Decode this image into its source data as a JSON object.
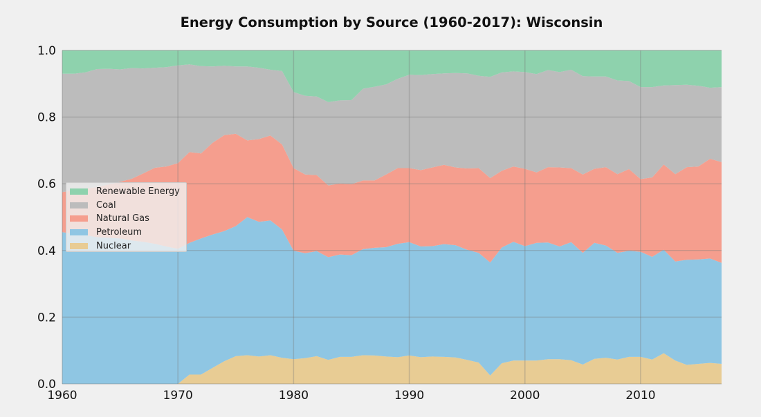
{
  "chart_data": {
    "type": "area",
    "stacked": true,
    "normalized": true,
    "title": "Energy Consumption by Source (1960-2017): Wisconsin",
    "xlabel": "",
    "ylabel": "",
    "xlim": [
      1960,
      2017
    ],
    "ylim": [
      0,
      1
    ],
    "x_ticks": [
      "1960",
      "1970",
      "1980",
      "1990",
      "2000",
      "2010"
    ],
    "y_ticks": [
      "0.0",
      "0.2",
      "0.4",
      "0.6",
      "0.8",
      "1.0"
    ],
    "grid": true,
    "legend_position": "center-left",
    "x": [
      1960,
      1961,
      1962,
      1963,
      1964,
      1965,
      1966,
      1967,
      1968,
      1969,
      1970,
      1971,
      1972,
      1973,
      1974,
      1975,
      1976,
      1977,
      1978,
      1979,
      1980,
      1981,
      1982,
      1983,
      1984,
      1985,
      1986,
      1987,
      1988,
      1989,
      1990,
      1991,
      1992,
      1993,
      1994,
      1995,
      1996,
      1997,
      1998,
      1999,
      2000,
      2001,
      2002,
      2003,
      2004,
      2005,
      2006,
      2007,
      2008,
      2009,
      2010,
      2011,
      2012,
      2013,
      2014,
      2015,
      2016,
      2017
    ],
    "series": [
      {
        "name": "Nuclear",
        "color": "#e8cc94",
        "values": [
          0,
          0,
          0,
          0,
          0,
          0,
          0,
          0,
          0,
          0,
          0,
          0.028,
          0.028,
          0.048,
          0.068,
          0.083,
          0.086,
          0.082,
          0.086,
          0.078,
          0.074,
          0.077,
          0.083,
          0.072,
          0.081,
          0.081,
          0.086,
          0.085,
          0.082,
          0.08,
          0.085,
          0.08,
          0.082,
          0.081,
          0.079,
          0.072,
          0.064,
          0.025,
          0.062,
          0.07,
          0.07,
          0.07,
          0.074,
          0.074,
          0.071,
          0.058,
          0.075,
          0.078,
          0.073,
          0.081,
          0.081,
          0.073,
          0.092,
          0.07,
          0.057,
          0.06,
          0.063,
          0.06
        ]
      },
      {
        "name": "Petroleum",
        "color": "#8fc6e3",
        "values": [
          0.455,
          0.45,
          0.446,
          0.44,
          0.438,
          0.436,
          0.43,
          0.426,
          0.42,
          0.412,
          0.405,
          0.395,
          0.408,
          0.4,
          0.39,
          0.39,
          0.414,
          0.404,
          0.404,
          0.385,
          0.325,
          0.315,
          0.315,
          0.308,
          0.307,
          0.305,
          0.318,
          0.323,
          0.328,
          0.34,
          0.34,
          0.332,
          0.331,
          0.338,
          0.337,
          0.33,
          0.329,
          0.339,
          0.347,
          0.356,
          0.343,
          0.353,
          0.35,
          0.338,
          0.354,
          0.335,
          0.348,
          0.337,
          0.32,
          0.318,
          0.315,
          0.308,
          0.31,
          0.297,
          0.315,
          0.313,
          0.313,
          0.303
        ]
      },
      {
        "name": "Natural Gas",
        "color": "#f59e8e",
        "values": [
          0.12,
          0.13,
          0.14,
          0.15,
          0.16,
          0.17,
          0.185,
          0.205,
          0.228,
          0.24,
          0.257,
          0.272,
          0.255,
          0.275,
          0.288,
          0.277,
          0.23,
          0.248,
          0.255,
          0.255,
          0.248,
          0.236,
          0.228,
          0.215,
          0.213,
          0.213,
          0.206,
          0.202,
          0.218,
          0.227,
          0.222,
          0.229,
          0.236,
          0.238,
          0.233,
          0.244,
          0.254,
          0.253,
          0.23,
          0.226,
          0.232,
          0.211,
          0.226,
          0.237,
          0.222,
          0.235,
          0.222,
          0.235,
          0.236,
          0.245,
          0.218,
          0.238,
          0.256,
          0.262,
          0.278,
          0.279,
          0.299,
          0.302
        ]
      },
      {
        "name": "Coal",
        "color": "#bcbcbc",
        "values": [
          0.355,
          0.35,
          0.348,
          0.354,
          0.347,
          0.337,
          0.332,
          0.315,
          0.3,
          0.298,
          0.293,
          0.263,
          0.262,
          0.229,
          0.208,
          0.202,
          0.222,
          0.214,
          0.197,
          0.22,
          0.228,
          0.236,
          0.236,
          0.25,
          0.249,
          0.252,
          0.275,
          0.281,
          0.27,
          0.268,
          0.28,
          0.285,
          0.28,
          0.274,
          0.283,
          0.285,
          0.277,
          0.304,
          0.295,
          0.285,
          0.29,
          0.295,
          0.291,
          0.286,
          0.295,
          0.295,
          0.277,
          0.272,
          0.281,
          0.264,
          0.276,
          0.271,
          0.237,
          0.267,
          0.247,
          0.242,
          0.213,
          0.225
        ]
      },
      {
        "name": "Renewable Energy",
        "color": "#8ed2ad",
        "values": [
          0.07,
          0.07,
          0.066,
          0.056,
          0.055,
          0.057,
          0.053,
          0.054,
          0.052,
          0.05,
          0.045,
          0.042,
          0.047,
          0.048,
          0.046,
          0.048,
          0.048,
          0.052,
          0.058,
          0.062,
          0.125,
          0.136,
          0.138,
          0.155,
          0.15,
          0.149,
          0.115,
          0.109,
          0.102,
          0.085,
          0.073,
          0.074,
          0.071,
          0.069,
          0.068,
          0.069,
          0.076,
          0.079,
          0.066,
          0.063,
          0.065,
          0.071,
          0.059,
          0.065,
          0.058,
          0.077,
          0.078,
          0.078,
          0.09,
          0.092,
          0.11,
          0.11,
          0.105,
          0.104,
          0.103,
          0.106,
          0.112,
          0.11
        ]
      }
    ],
    "legend_order": [
      "Renewable Energy",
      "Coal",
      "Natural Gas",
      "Petroleum",
      "Nuclear"
    ]
  }
}
